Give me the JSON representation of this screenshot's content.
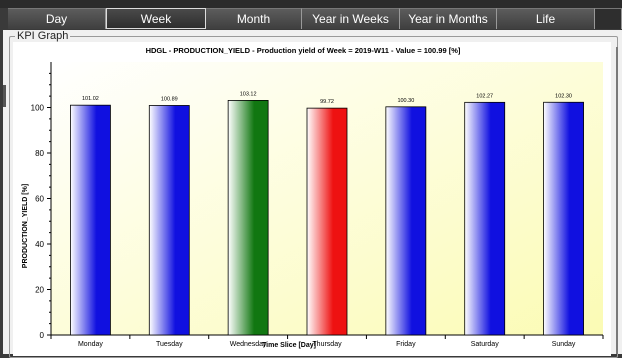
{
  "tabs": [
    {
      "label": "Day",
      "active": false
    },
    {
      "label": "Week",
      "active": true
    },
    {
      "label": "Month",
      "active": false
    },
    {
      "label": "Year in Weeks",
      "active": false
    },
    {
      "label": "Year in Months",
      "active": false
    },
    {
      "label": "Life",
      "active": false
    }
  ],
  "panel": {
    "title": "KPI Graph"
  },
  "chart_data": {
    "type": "bar",
    "title": "HDGL - PRODUCTION_YIELD - Production yield of Week = 2019-W11 - Value = 100.99 [%]",
    "xlabel": "Time Slice [Day]",
    "ylabel": "PRODUCTION_YIELD [%]",
    "categories": [
      "Monday",
      "Tuesday",
      "Wednesday",
      "Thursday",
      "Friday",
      "Saturday",
      "Sunday"
    ],
    "values": [
      101.02,
      100.89,
      103.12,
      99.72,
      100.3,
      102.27,
      102.3
    ],
    "value_labels": [
      "101.02",
      "100.89",
      "103.12",
      "99.72",
      "100.30",
      "102.27",
      "102.30"
    ],
    "colors": [
      "#1010e0",
      "#1010e0",
      "#117711",
      "#ee1111",
      "#1010e0",
      "#1010e0",
      "#1010e0"
    ],
    "ylim": [
      0,
      120
    ],
    "yticks": [
      0,
      20,
      40,
      60,
      80,
      100
    ],
    "grid": false
  }
}
